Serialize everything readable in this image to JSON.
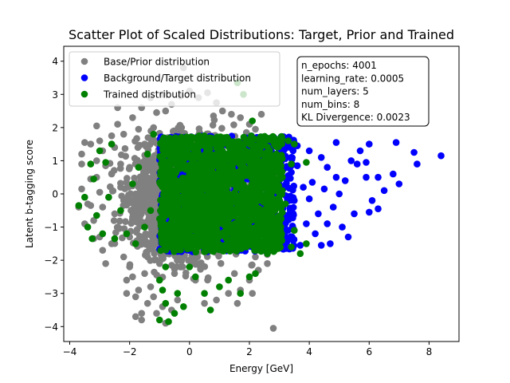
{
  "chart_data": {
    "type": "scatter",
    "title": "Scatter Plot of Scaled Distributions: Target, Prior and Trained",
    "xlabel": "Energy [GeV]",
    "ylabel": "Latent b-tagging score",
    "xlim": [
      -4.2,
      9.0
    ],
    "ylim": [
      -4.45,
      4.45
    ],
    "x_ticks": [
      -4,
      -2,
      0,
      2,
      4,
      6,
      8
    ],
    "y_ticks": [
      -4,
      -3,
      -2,
      -1,
      0,
      1,
      2,
      3,
      4
    ],
    "grid": false,
    "legend_position": "top-left",
    "series": [
      {
        "name": "Base/Prior distribution",
        "color": "#808080",
        "points": [
          [
            -3.5,
            1.55
          ],
          [
            -3.6,
            0.9
          ],
          [
            -3.1,
            0.5
          ],
          [
            -3.4,
            -0.3
          ],
          [
            -3.6,
            0.15
          ],
          [
            -3.7,
            -0.4
          ],
          [
            -3.0,
            -1.3
          ],
          [
            -3.2,
            -1.35
          ],
          [
            -2.9,
            -1.7
          ],
          [
            -2.8,
            -2.1
          ],
          [
            -3.3,
            -0.35
          ],
          [
            -3.0,
            0.05
          ],
          [
            -3.1,
            1.0
          ],
          [
            -2.9,
            1.3
          ],
          [
            -3.0,
            1.6
          ],
          [
            -3.3,
            1.5
          ],
          [
            -3.1,
            2.05
          ],
          [
            -3.2,
            -0.8
          ],
          [
            -2.5,
            1.4
          ],
          [
            -2.4,
            2.1
          ],
          [
            -2.2,
            1.8
          ],
          [
            -2.3,
            0.9
          ],
          [
            -2.6,
            0.6
          ],
          [
            -2.5,
            -0.6
          ],
          [
            -2.4,
            -1.0
          ],
          [
            -2.6,
            -1.5
          ],
          [
            -2.2,
            -1.9
          ],
          [
            -2.0,
            -2.2
          ],
          [
            -1.9,
            -2.5
          ],
          [
            -1.7,
            -2.9
          ],
          [
            -1.5,
            -2.4
          ],
          [
            -1.3,
            -2.8
          ],
          [
            -1.2,
            -3.1
          ],
          [
            -1.4,
            -3.3
          ],
          [
            -1.1,
            -3.6
          ],
          [
            -0.9,
            -3.4
          ],
          [
            -0.6,
            -3.5
          ],
          [
            -0.4,
            -3.2
          ],
          [
            -0.8,
            -3.9
          ],
          [
            -1.6,
            -3.6
          ],
          [
            -2.1,
            -3.0
          ],
          [
            -1.8,
            -3.7
          ],
          [
            -1.9,
            2.3
          ],
          [
            -1.6,
            2.6
          ],
          [
            -1.3,
            2.9
          ],
          [
            -0.9,
            3.0
          ],
          [
            -1.1,
            2.45
          ],
          [
            -0.6,
            2.7
          ],
          [
            -0.3,
            2.95
          ],
          [
            0.0,
            3.1
          ],
          [
            -0.2,
            3.8
          ],
          [
            0.3,
            2.9
          ],
          [
            0.6,
            3.05
          ],
          [
            0.9,
            2.75
          ],
          [
            1.1,
            2.5
          ],
          [
            1.4,
            2.4
          ],
          [
            1.7,
            2.3
          ],
          [
            2.0,
            2.1
          ],
          [
            2.2,
            1.95
          ],
          [
            2.4,
            2.4
          ],
          [
            2.3,
            -2.3
          ],
          [
            2.0,
            -2.6
          ],
          [
            1.7,
            -2.9
          ],
          [
            1.3,
            -3.0
          ],
          [
            0.9,
            -3.2
          ],
          [
            0.5,
            -3.3
          ],
          [
            2.1,
            -3.0
          ],
          [
            2.6,
            -2.1
          ],
          [
            2.2,
            -1.9
          ],
          [
            2.4,
            1.0
          ],
          [
            2.6,
            0.3
          ],
          [
            2.5,
            -0.5
          ],
          [
            2.8,
            -4.05
          ],
          [
            -1.6,
            -3.8
          ],
          [
            -2.0,
            -1.3
          ],
          [
            -1.8,
            0.0
          ],
          [
            -2.0,
            0.8
          ],
          [
            -1.5,
            1.5
          ],
          [
            -3.3,
            0.45
          ],
          [
            -2.7,
            -0.1
          ],
          [
            -2.3,
            0.2
          ],
          [
            -1.9,
            -0.7
          ],
          [
            -2.2,
            -0.2
          ],
          [
            -2.8,
            0.85
          ],
          [
            -1.7,
            1.95
          ],
          [
            -1.4,
            -1.9
          ],
          [
            -1.2,
            2.0
          ],
          [
            -1.0,
            -2.1
          ],
          [
            -0.5,
            -2.4
          ],
          [
            0.2,
            -2.6
          ],
          [
            0.8,
            2.35
          ],
          [
            1.5,
            -2.4
          ],
          [
            1.9,
            1.85
          ],
          [
            -2.6,
            1.75
          ],
          [
            -2.1,
            -2.6
          ],
          [
            -0.8,
            2.5
          ],
          [
            1.6,
            -3.3
          ],
          [
            -2.4,
            2.6
          ],
          [
            -1.8,
            -3.1
          ],
          [
            -3.5,
            -0.9
          ],
          [
            -3.6,
            1.2
          ],
          [
            -2.9,
            -0.4
          ]
        ]
      },
      {
        "name": "Background/Target distribution",
        "color": "#0000ff",
        "points": [
          [
            8.4,
            1.15
          ],
          [
            7.5,
            1.25
          ],
          [
            7.6,
            0.9
          ],
          [
            6.9,
            1.55
          ],
          [
            6.8,
            0.6
          ],
          [
            6.5,
            0.1
          ],
          [
            6.3,
            -0.45
          ],
          [
            6.0,
            1.5
          ],
          [
            6.0,
            -0.55
          ],
          [
            5.9,
            0.5
          ],
          [
            5.6,
            0.9
          ],
          [
            5.4,
            1.0
          ],
          [
            5.3,
            -1.3
          ],
          [
            5.1,
            -1.0
          ],
          [
            5.0,
            0.0
          ],
          [
            4.9,
            0.5
          ],
          [
            4.8,
            -0.4
          ],
          [
            4.7,
            -1.5
          ],
          [
            4.6,
            0.8
          ],
          [
            4.5,
            0.15
          ],
          [
            4.4,
            1.1
          ],
          [
            4.3,
            -0.6
          ],
          [
            4.2,
            -1.2
          ],
          [
            4.1,
            0.35
          ],
          [
            4.0,
            1.3
          ],
          [
            3.9,
            -0.9
          ],
          [
            3.8,
            0.2
          ],
          [
            3.7,
            -1.55
          ],
          [
            3.6,
            1.45
          ],
          [
            3.5,
            -0.2
          ],
          [
            3.4,
            0.65
          ],
          [
            3.3,
            -1.35
          ],
          [
            3.2,
            1.1
          ],
          [
            3.1,
            -0.75
          ],
          [
            3.0,
            0.4
          ],
          [
            2.9,
            -1.1
          ],
          [
            4.6,
            -0.9
          ],
          [
            5.5,
            -0.6
          ],
          [
            6.3,
            0.5
          ],
          [
            5.9,
            0.95
          ],
          [
            4.9,
            1.55
          ],
          [
            4.4,
            -1.55
          ],
          [
            3.6,
            0.85
          ],
          [
            4.0,
            -0.15
          ],
          [
            5.2,
            0.4
          ],
          [
            6.1,
            -0.2
          ],
          [
            7.0,
            0.3
          ],
          [
            5.7,
            1.3
          ]
        ]
      },
      {
        "name": "Trained distribution",
        "color": "#008000",
        "points": [
          [
            -3.7,
            -0.35
          ],
          [
            -3.3,
            0.9
          ],
          [
            -3.25,
            -1.35
          ],
          [
            -3.2,
            0.45
          ],
          [
            -3.0,
            1.3
          ],
          [
            -3.1,
            -0.65
          ],
          [
            -2.9,
            -1.2
          ],
          [
            -2.8,
            0.95
          ],
          [
            -2.7,
            -0.1
          ],
          [
            -2.6,
            1.5
          ],
          [
            -2.5,
            -1.35
          ],
          [
            -3.4,
            -1.0
          ],
          [
            -2.1,
            -1.2
          ],
          [
            -1.9,
            0.3
          ],
          [
            -1.7,
            0.8
          ],
          [
            -1.5,
            -1.0
          ],
          [
            -1.4,
            1.2
          ],
          [
            -1.3,
            -0.5
          ],
          [
            -1.0,
            -2.6
          ],
          [
            -0.9,
            -2.9
          ],
          [
            -0.8,
            -3.3
          ],
          [
            -0.5,
            -3.6
          ],
          [
            -0.2,
            -3.4
          ],
          [
            -1.0,
            -3.8
          ],
          [
            -0.8,
            -2.2
          ],
          [
            -0.4,
            -3.0
          ],
          [
            -0.7,
            -3.85
          ],
          [
            0.2,
            -2.5
          ],
          [
            0.5,
            -3.0
          ],
          [
            0.7,
            -3.5
          ],
          [
            1.0,
            -2.8
          ],
          [
            1.3,
            -2.6
          ],
          [
            1.7,
            -3.0
          ],
          [
            2.0,
            -2.5
          ],
          [
            2.2,
            -2.4
          ],
          [
            2.6,
            -1.8
          ],
          [
            3.0,
            -1.5
          ],
          [
            3.4,
            -1.6
          ],
          [
            3.7,
            -1.8
          ],
          [
            3.9,
            -1.5
          ],
          [
            3.5,
            -1.1
          ],
          [
            3.1,
            0.5
          ],
          [
            3.4,
            0.9
          ],
          [
            3.5,
            1.5
          ],
          [
            3.9,
            0.95
          ],
          [
            3.3,
            1.6
          ],
          [
            2.9,
            1.2
          ],
          [
            2.1,
            2.2
          ],
          [
            1.8,
            3.0
          ],
          [
            1.6,
            3.35
          ],
          [
            -1.2,
            1.8
          ],
          [
            -2.3,
            -0.5
          ],
          [
            -1.8,
            -1.5
          ],
          [
            -0.9,
            1.5
          ],
          [
            0.0,
            -2.2
          ],
          [
            2.6,
            -0.6
          ],
          [
            3.2,
            -0.3
          ],
          [
            3.0,
            -0.9
          ],
          [
            2.8,
            0.1
          ],
          [
            -3.5,
            -0.1
          ]
        ]
      }
    ],
    "dense_regions": [
      {
        "series": "Base/Prior distribution",
        "x_range": [
          -2.8,
          2.9
        ],
        "y_range": [
          -2.6,
          2.4
        ],
        "count": 3000,
        "distribution": "gaussian",
        "sd": [
          0.9,
          0.8
        ]
      },
      {
        "series": "Background/Target distribution",
        "x_range": [
          -1.0,
          3.5
        ],
        "y_range": [
          -1.75,
          1.75
        ],
        "count": 1000,
        "distribution": "uniform"
      },
      {
        "series": "Trained distribution",
        "x_range": [
          -1.0,
          3.1
        ],
        "y_range": [
          -1.75,
          1.75
        ],
        "count": 1800,
        "distribution": "uniform"
      }
    ],
    "textbox": {
      "position": "top-right",
      "lines": [
        "n_epochs: 4001",
        "learning_rate: 0.0005",
        "num_layers: 5",
        "num_bins: 8",
        "KL Divergence: 0.0023"
      ]
    }
  }
}
